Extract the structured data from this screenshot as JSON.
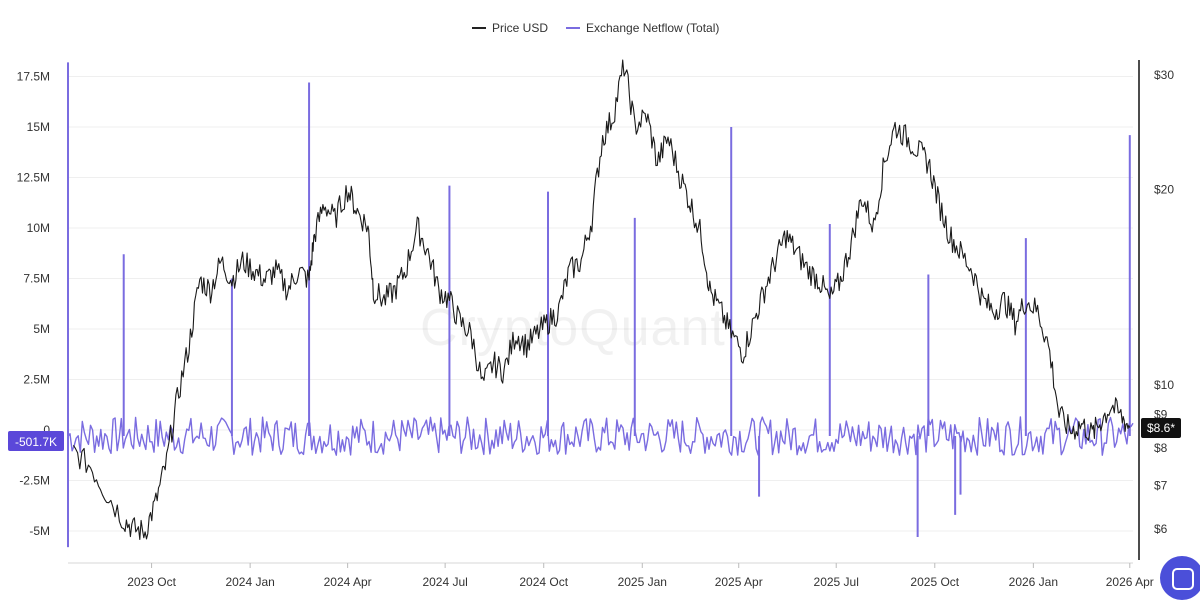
{
  "legend": [
    {
      "label": "Price USD",
      "color": "#222222"
    },
    {
      "label": "Exchange Netflow (Total)",
      "color": "#7a6ce0"
    }
  ],
  "watermark": "CryptoQuant",
  "left_badge": "-501.7K",
  "right_badge": "$8.6*",
  "chat_icon": "chat-bubble-icon",
  "chart_data": {
    "type": "line",
    "x_ticks": [
      "2023 Oct",
      "2024 Jan",
      "2024 Apr",
      "2024 Jul",
      "2024 Oct",
      "2025 Jan",
      "2025 Apr",
      "2025 Jul",
      "2025 Oct",
      "2026 Jan",
      "2026 Apr"
    ],
    "y_left": {
      "ticks": [
        "17.5M",
        "15M",
        "12.5M",
        "10M",
        "7.5M",
        "5M",
        "2.5M",
        "0",
        "-2.5M",
        "-5M"
      ],
      "tick_values": [
        17500000,
        15000000,
        12500000,
        10000000,
        7500000,
        5000000,
        2500000,
        0,
        -2500000,
        -5000000
      ],
      "range": [
        -5500000,
        18500000
      ]
    },
    "y_right": {
      "scale": "log",
      "ticks": [
        "$30",
        "$20",
        "$10",
        "$9",
        "$8",
        "$7",
        "$6"
      ],
      "tick_values": [
        30,
        20,
        10,
        9,
        8,
        7,
        6
      ],
      "range": [
        5.5,
        31.5
      ]
    },
    "series": [
      {
        "name": "Price USD",
        "axis": "right",
        "points": [
          [
            "2023-07-20",
            7.9
          ],
          [
            "2023-08-05",
            7.5
          ],
          [
            "2023-08-20",
            6.8
          ],
          [
            "2023-09-05",
            6.2
          ],
          [
            "2023-09-15",
            6.0
          ],
          [
            "2023-09-25",
            5.95
          ],
          [
            "2023-10-05",
            6.6
          ],
          [
            "2023-10-15",
            7.6
          ],
          [
            "2023-10-25",
            9.5
          ],
          [
            "2023-11-05",
            11.5
          ],
          [
            "2023-11-15",
            14.5
          ],
          [
            "2023-11-25",
            14.0
          ],
          [
            "2023-12-05",
            15.5
          ],
          [
            "2023-12-15",
            14.5
          ],
          [
            "2023-12-25",
            15.5
          ],
          [
            "2024-01-05",
            15.0
          ],
          [
            "2024-01-15",
            14.5
          ],
          [
            "2024-01-25",
            15.0
          ],
          [
            "2024-02-05",
            14.0
          ],
          [
            "2024-02-15",
            15.0
          ],
          [
            "2024-02-25",
            14.5
          ],
          [
            "2024-03-01",
            17.0
          ],
          [
            "2024-03-10",
            19.0
          ],
          [
            "2024-03-20",
            18.0
          ],
          [
            "2024-04-01",
            20.0
          ],
          [
            "2024-04-10",
            18.5
          ],
          [
            "2024-04-20",
            17.5
          ],
          [
            "2024-04-25",
            14.0
          ],
          [
            "2024-05-05",
            13.5
          ],
          [
            "2024-05-15",
            14.0
          ],
          [
            "2024-05-25",
            15.0
          ],
          [
            "2024-06-05",
            17.5
          ],
          [
            "2024-06-15",
            16.0
          ],
          [
            "2024-06-25",
            14.0
          ],
          [
            "2024-07-05",
            13.5
          ],
          [
            "2024-07-15",
            12.5
          ],
          [
            "2024-07-25",
            12.0
          ],
          [
            "2024-08-05",
            10.0
          ],
          [
            "2024-08-15",
            10.8
          ],
          [
            "2024-08-25",
            10.5
          ],
          [
            "2024-09-05",
            12.0
          ],
          [
            "2024-09-15",
            11.5
          ],
          [
            "2024-09-25",
            12.0
          ],
          [
            "2024-10-05",
            12.5
          ],
          [
            "2024-10-15",
            13.0
          ],
          [
            "2024-10-25",
            15.0
          ],
          [
            "2024-11-05",
            15.5
          ],
          [
            "2024-11-15",
            18.0
          ],
          [
            "2024-11-25",
            24.0
          ],
          [
            "2024-12-05",
            26.0
          ],
          [
            "2024-12-15",
            31.0
          ],
          [
            "2024-12-25",
            25.0
          ],
          [
            "2025-01-05",
            26.0
          ],
          [
            "2025-01-15",
            22.0
          ],
          [
            "2025-01-25",
            24.0
          ],
          [
            "2025-02-05",
            21.0
          ],
          [
            "2025-02-15",
            19.0
          ],
          [
            "2025-02-25",
            17.0
          ],
          [
            "2025-03-05",
            14.0
          ],
          [
            "2025-03-15",
            13.0
          ],
          [
            "2025-03-25",
            12.0
          ],
          [
            "2025-04-05",
            11.2
          ],
          [
            "2025-04-15",
            12.5
          ],
          [
            "2025-04-25",
            14.0
          ],
          [
            "2025-05-05",
            15.5
          ],
          [
            "2025-05-15",
            17.0
          ],
          [
            "2025-05-25",
            16.0
          ],
          [
            "2025-06-05",
            15.0
          ],
          [
            "2025-06-15",
            14.5
          ],
          [
            "2025-06-25",
            13.5
          ],
          [
            "2025-07-05",
            14.5
          ],
          [
            "2025-07-15",
            16.5
          ],
          [
            "2025-07-25",
            19.5
          ],
          [
            "2025-08-05",
            17.5
          ],
          [
            "2025-08-15",
            22.0
          ],
          [
            "2025-08-25",
            25.0
          ],
          [
            "2025-09-05",
            24.0
          ],
          [
            "2025-09-15",
            23.0
          ],
          [
            "2025-09-25",
            22.0
          ],
          [
            "2025-10-05",
            19.0
          ],
          [
            "2025-10-15",
            17.0
          ],
          [
            "2025-10-25",
            16.0
          ],
          [
            "2025-11-05",
            15.0
          ],
          [
            "2025-11-15",
            13.5
          ],
          [
            "2025-11-25",
            13.0
          ],
          [
            "2025-12-05",
            13.5
          ],
          [
            "2025-12-15",
            12.5
          ],
          [
            "2025-12-25",
            13.5
          ],
          [
            "2026-01-05",
            13.0
          ],
          [
            "2026-01-15",
            11.5
          ],
          [
            "2026-01-25",
            9.0
          ],
          [
            "2026-02-05",
            8.5
          ],
          [
            "2026-02-15",
            8.7
          ],
          [
            "2026-02-25",
            8.4
          ],
          [
            "2026-03-05",
            8.8
          ],
          [
            "2026-03-15",
            9.3
          ],
          [
            "2026-03-25",
            8.9
          ],
          [
            "2026-04-01",
            8.6
          ]
        ]
      },
      {
        "name": "Exchange Netflow (Total)",
        "axis": "left",
        "baseline": -300000,
        "spikes": [
          [
            "2023-07-15",
            18200000
          ],
          [
            "2023-07-15",
            -5800000
          ],
          [
            "2023-09-05",
            8700000
          ],
          [
            "2023-12-15",
            7500000
          ],
          [
            "2024-02-25",
            17200000
          ],
          [
            "2024-07-05",
            12100000
          ],
          [
            "2024-10-05",
            11800000
          ],
          [
            "2024-12-25",
            10500000
          ],
          [
            "2025-03-25",
            15000000
          ],
          [
            "2025-06-25",
            10200000
          ],
          [
            "2025-09-25",
            7700000
          ],
          [
            "2025-12-25",
            9500000
          ],
          [
            "2026-04-01",
            14600000
          ],
          [
            "2025-09-15",
            -5300000
          ],
          [
            "2025-10-20",
            -4200000
          ],
          [
            "2025-10-25",
            -3200000
          ],
          [
            "2025-04-20",
            -3300000
          ]
        ],
        "last_value": -501700
      }
    ]
  }
}
